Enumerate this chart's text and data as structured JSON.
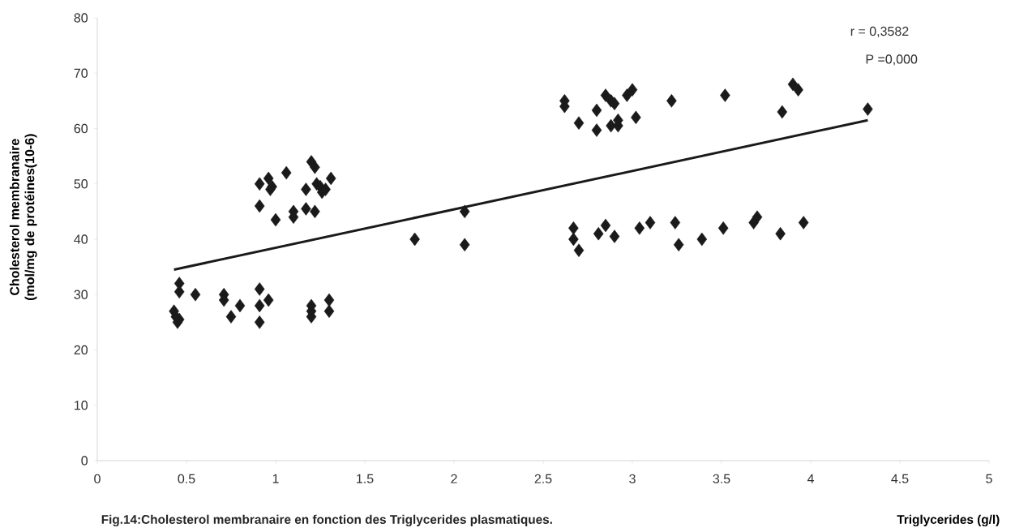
{
  "chart_data": {
    "type": "scatter",
    "xlabel": "Triglycerides (g/l)",
    "ylabel": "Cholesterol membranaire (mol/mg de protéines(10-6)",
    "annotations": [
      "r = 0,3582",
      "P  =0,000",
      "Fig.14:Cholesterol membranaire en fonction des Triglycerides plasmatiques."
    ],
    "xlim": [
      0,
      5
    ],
    "ylim": [
      0,
      80
    ],
    "xticks": [
      0,
      0.5,
      1,
      1.5,
      2,
      2.5,
      3,
      3.5,
      4,
      4.5,
      5
    ],
    "yticks": [
      0,
      10,
      20,
      30,
      40,
      50,
      60,
      70,
      80
    ],
    "marker": "diamond",
    "series": [
      {
        "color": "#1a1a1a",
        "x": [
          0.43,
          0.44,
          0.45,
          0.46,
          0.46,
          0.46,
          0.55,
          0.71,
          0.71,
          0.75,
          0.8,
          0.91,
          0.91,
          0.91,
          0.96,
          1.2,
          1.2,
          1.2,
          1.3,
          1.3,
          0.91,
          0.91,
          0.96,
          0.97,
          0.98,
          1.0,
          1.06,
          1.1,
          1.1,
          1.17,
          1.17,
          1.2,
          1.22,
          1.22,
          1.23,
          1.25,
          1.26,
          1.28,
          1.31,
          1.78,
          2.06,
          2.06,
          2.62,
          2.62,
          2.7,
          2.8,
          2.8,
          2.85,
          2.88,
          2.9,
          2.88,
          2.92,
          2.92,
          2.97,
          3.0,
          3.02,
          3.22,
          3.52,
          3.84,
          3.9,
          3.93,
          4.32,
          2.67,
          2.67,
          2.7,
          2.81,
          2.85,
          2.9,
          3.04,
          3.1,
          3.24,
          3.26,
          3.39,
          3.51,
          3.68,
          3.7,
          3.83,
          3.96
        ],
        "values": [
          27,
          26,
          25,
          25.5,
          32,
          30.5,
          30,
          30,
          29,
          26,
          28,
          31,
          28,
          25,
          29,
          28,
          27,
          26,
          29,
          27,
          50,
          46,
          51,
          49,
          49.5,
          43.5,
          52,
          44,
          45,
          45.5,
          49,
          54,
          53,
          45,
          50,
          49.5,
          48.5,
          49,
          51,
          40,
          45,
          39,
          65,
          64,
          61,
          63.3,
          59.7,
          66,
          65,
          64.5,
          60.5,
          61.5,
          60.5,
          66,
          67,
          62,
          65,
          66,
          63,
          68,
          67,
          63.5,
          42,
          40,
          38,
          41,
          42.5,
          40.5,
          42,
          43,
          43,
          39,
          40,
          42,
          43,
          44,
          41,
          43
        ]
      },
      {
        "type": "line",
        "color": "#1a1a1a",
        "marker": "none",
        "line_style": "solid",
        "x": [
          0.43,
          4.32
        ],
        "values": [
          34.5,
          61.5
        ]
      }
    ]
  }
}
